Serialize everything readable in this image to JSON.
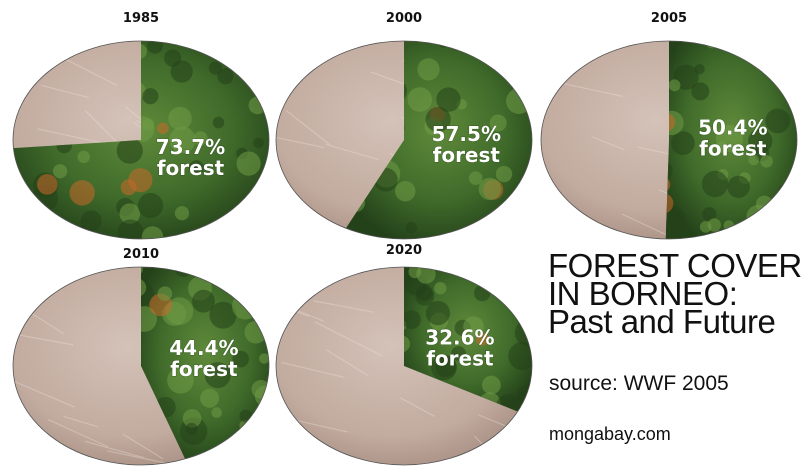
{
  "chart_data": {
    "type": "pie",
    "title": "FOREST COVER IN BORNEO: Past and Future",
    "series": [
      {
        "year": "1985",
        "forest_percent": 73.7,
        "pct_label": "73.7%",
        "word_label": "forest"
      },
      {
        "year": "2000",
        "forest_percent": 57.5,
        "pct_label": "57.5%",
        "word_label": "forest"
      },
      {
        "year": "2005",
        "forest_percent": 50.4,
        "pct_label": "50.4%",
        "word_label": "forest"
      },
      {
        "year": "2010",
        "forest_percent": 44.4,
        "pct_label": "44.4%",
        "word_label": "forest"
      },
      {
        "year": "2020",
        "forest_percent": 32.6,
        "pct_label": "32.6%",
        "word_label": "forest"
      }
    ],
    "title_lines": [
      "FOREST COVER",
      "IN BORNEO:",
      "Past and Future"
    ],
    "source": "source: WWF 2005",
    "site": "mongabay.com",
    "colors": {
      "forest": "#3f6a2a",
      "forest_dark": "#24421a",
      "forest_light": "#6f9a45",
      "cleared": "#c9b3a8",
      "cleared_dark": "#a88f84",
      "autumn": "#c8672a"
    }
  }
}
